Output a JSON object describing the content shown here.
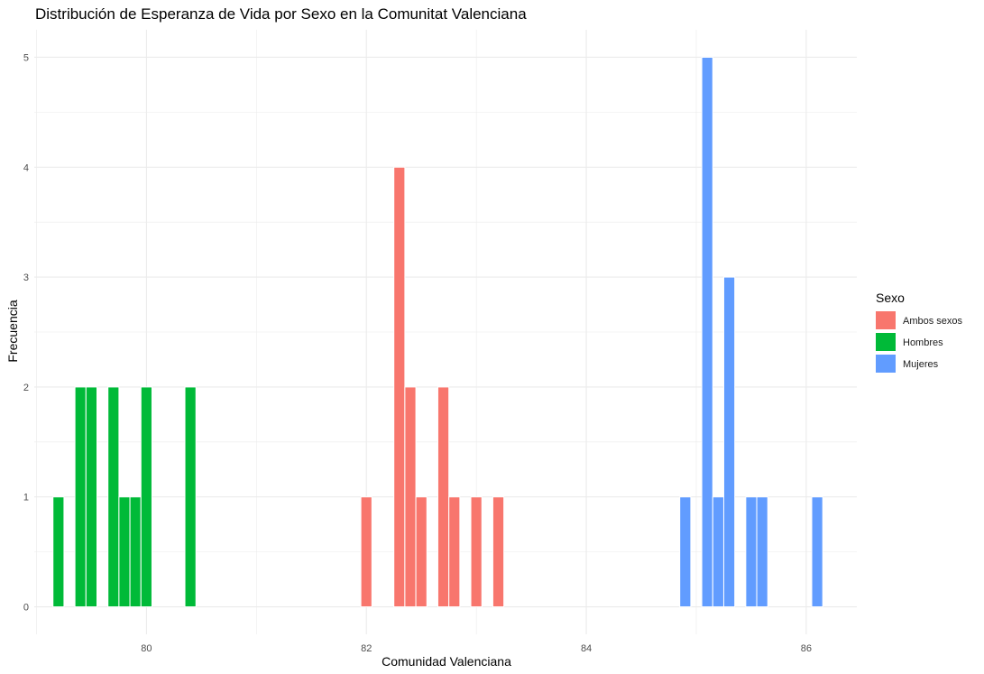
{
  "chart_data": {
    "type": "bar",
    "title": "Distribución de Esperanza de Vida por Sexo en la Comunitat Valenciana",
    "xlabel": "Comunidad Valenciana",
    "ylabel": "Frecuencia",
    "xlim": [
      78.98,
      86.46
    ],
    "ylim": [
      -0.25,
      5.25
    ],
    "x_ticks": [
      80,
      82,
      84,
      86
    ],
    "y_ticks": [
      0,
      1,
      2,
      3,
      4,
      5
    ],
    "bin_width": 0.1,
    "grid": true,
    "legend": {
      "title": "Sexo",
      "position": "right"
    },
    "series": [
      {
        "name": "Ambos sexos",
        "color": "#F8766D",
        "bins": [
          {
            "x": 82.0,
            "count": 1
          },
          {
            "x": 82.3,
            "count": 4
          },
          {
            "x": 82.4,
            "count": 2
          },
          {
            "x": 82.5,
            "count": 1
          },
          {
            "x": 82.7,
            "count": 2
          },
          {
            "x": 82.8,
            "count": 1
          },
          {
            "x": 83.0,
            "count": 1
          },
          {
            "x": 83.2,
            "count": 1
          }
        ]
      },
      {
        "name": "Hombres",
        "color": "#00BA38",
        "bins": [
          {
            "x": 79.2,
            "count": 1
          },
          {
            "x": 79.4,
            "count": 2
          },
          {
            "x": 79.5,
            "count": 2
          },
          {
            "x": 79.7,
            "count": 2
          },
          {
            "x": 79.8,
            "count": 1
          },
          {
            "x": 79.9,
            "count": 1
          },
          {
            "x": 80.0,
            "count": 2
          },
          {
            "x": 80.4,
            "count": 2
          }
        ]
      },
      {
        "name": "Mujeres",
        "color": "#619CFF",
        "bins": [
          {
            "x": 84.9,
            "count": 1
          },
          {
            "x": 85.1,
            "count": 5
          },
          {
            "x": 85.2,
            "count": 1
          },
          {
            "x": 85.3,
            "count": 3
          },
          {
            "x": 85.5,
            "count": 1
          },
          {
            "x": 85.6,
            "count": 1
          },
          {
            "x": 86.1,
            "count": 1
          }
        ]
      }
    ]
  }
}
